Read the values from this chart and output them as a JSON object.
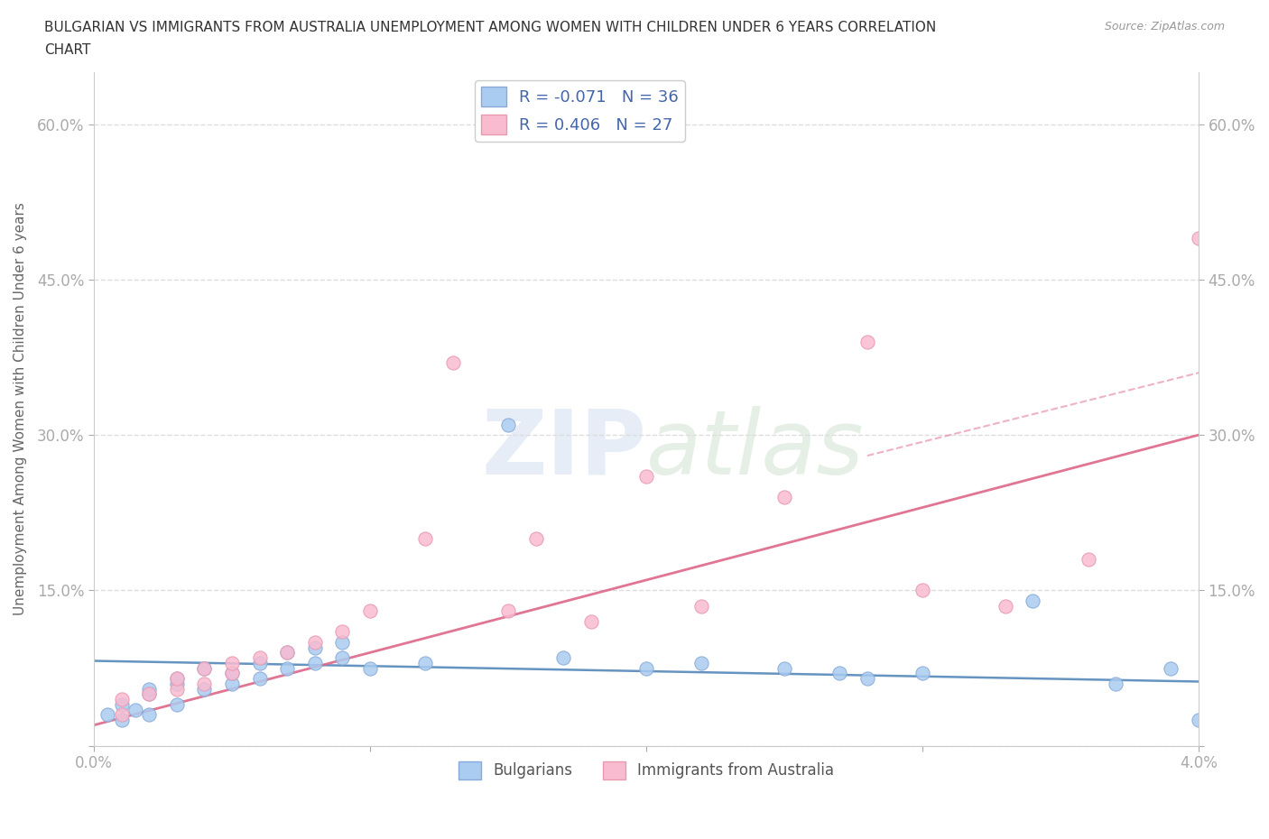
{
  "title_line1": "BULGARIAN VS IMMIGRANTS FROM AUSTRALIA UNEMPLOYMENT AMONG WOMEN WITH CHILDREN UNDER 6 YEARS CORRELATION",
  "title_line2": "CHART",
  "source": "Source: ZipAtlas.com",
  "ylabel": "Unemployment Among Women with Children Under 6 years",
  "xlim": [
    0.0,
    0.04
  ],
  "ylim": [
    0.0,
    0.65
  ],
  "xticks": [
    0.0,
    0.01,
    0.02,
    0.03,
    0.04
  ],
  "xtick_labels": [
    "0.0%",
    "",
    "",
    "",
    "4.0%"
  ],
  "ytick_positions": [
    0.0,
    0.15,
    0.3,
    0.45,
    0.6
  ],
  "ytick_labels": [
    "",
    "15.0%",
    "30.0%",
    "45.0%",
    "60.0%"
  ],
  "bulgarian_R": -0.071,
  "bulgarian_N": 36,
  "australia_R": 0.406,
  "australia_N": 27,
  "blue_color": "#aaccf0",
  "blue_edge": "#88aad8",
  "pink_color": "#f8bbd0",
  "pink_edge": "#e899b0",
  "blue_line_color": "#5588bb",
  "pink_line_color": "#dd6688",
  "blue_line_dash": "#88aacc",
  "grid_color": "#dddddd",
  "background_color": "#ffffff",
  "bulgarians_x": [
    0.0005,
    0.001,
    0.001,
    0.0015,
    0.002,
    0.002,
    0.002,
    0.003,
    0.003,
    0.003,
    0.004,
    0.004,
    0.005,
    0.005,
    0.006,
    0.006,
    0.007,
    0.007,
    0.008,
    0.008,
    0.009,
    0.009,
    0.01,
    0.012,
    0.015,
    0.017,
    0.02,
    0.022,
    0.025,
    0.027,
    0.028,
    0.03,
    0.034,
    0.037,
    0.039,
    0.04
  ],
  "bulgarians_y": [
    0.03,
    0.025,
    0.04,
    0.035,
    0.03,
    0.05,
    0.055,
    0.04,
    0.06,
    0.065,
    0.055,
    0.075,
    0.06,
    0.07,
    0.065,
    0.08,
    0.075,
    0.09,
    0.08,
    0.095,
    0.085,
    0.1,
    0.075,
    0.08,
    0.31,
    0.085,
    0.075,
    0.08,
    0.075,
    0.07,
    0.065,
    0.07,
    0.14,
    0.06,
    0.075,
    0.025
  ],
  "australia_x": [
    0.001,
    0.001,
    0.002,
    0.003,
    0.003,
    0.004,
    0.004,
    0.005,
    0.005,
    0.006,
    0.007,
    0.008,
    0.009,
    0.01,
    0.012,
    0.013,
    0.015,
    0.016,
    0.018,
    0.02,
    0.022,
    0.025,
    0.028,
    0.03,
    0.033,
    0.036,
    0.04
  ],
  "australia_y": [
    0.03,
    0.045,
    0.05,
    0.055,
    0.065,
    0.06,
    0.075,
    0.07,
    0.08,
    0.085,
    0.09,
    0.1,
    0.11,
    0.13,
    0.2,
    0.37,
    0.13,
    0.2,
    0.12,
    0.26,
    0.135,
    0.24,
    0.39,
    0.15,
    0.135,
    0.18,
    0.49
  ],
  "blue_trendline_x": [
    0.0,
    0.04
  ],
  "blue_trendline_y": [
    0.082,
    0.062
  ],
  "pink_trendline_x": [
    0.0,
    0.04
  ],
  "pink_trendline_y": [
    0.02,
    0.3
  ]
}
